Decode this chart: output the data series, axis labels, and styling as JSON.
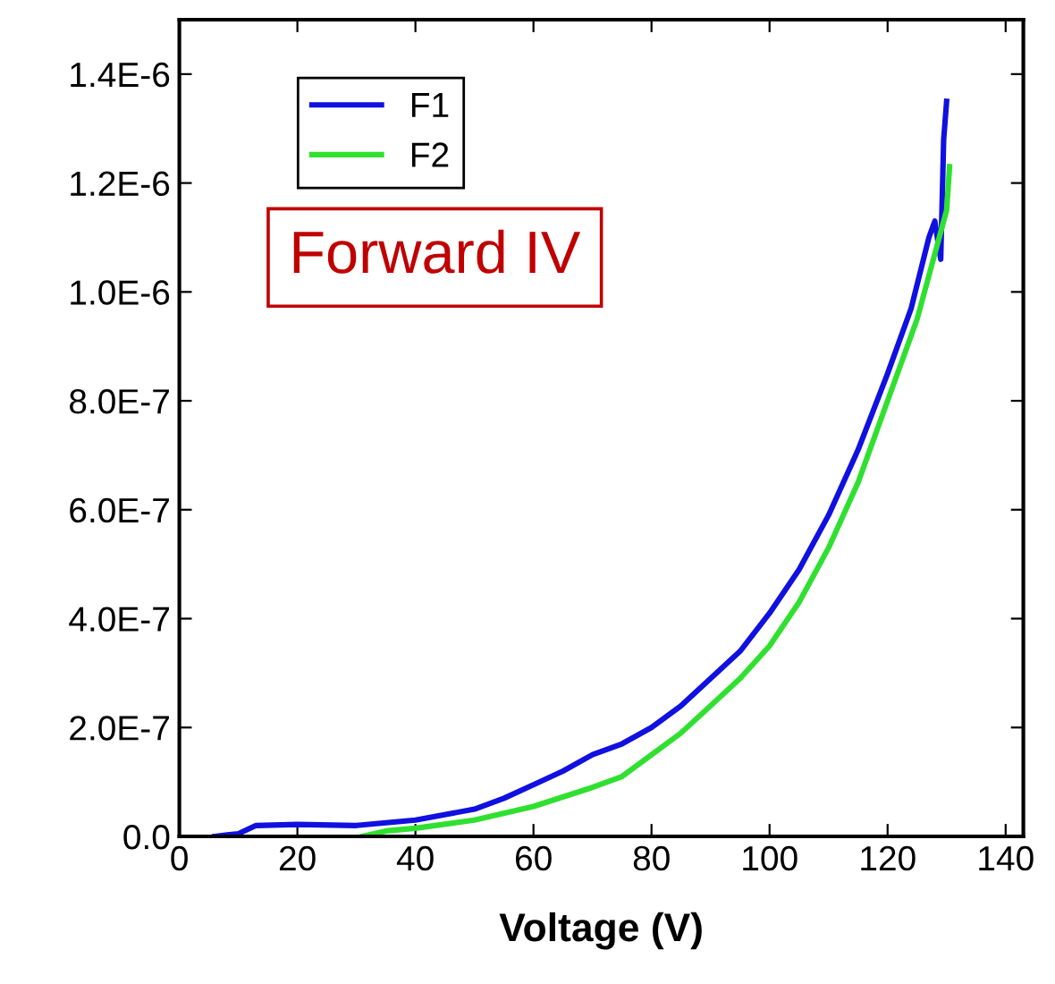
{
  "chart_data": {
    "type": "line",
    "xlabel": "Voltage (V)",
    "annotations": [
      "Forward IV"
    ],
    "series": [
      {
        "name": "F1",
        "color": "#1010e0",
        "x": [
          6,
          10,
          13,
          20,
          30,
          40,
          50,
          55,
          60,
          65,
          70,
          75,
          80,
          85,
          90,
          95,
          100,
          105,
          110,
          115,
          120,
          124,
          127,
          128,
          129,
          129.5,
          130
        ],
        "values": [
          0,
          5e-09,
          2e-08,
          2.2e-08,
          2e-08,
          3e-08,
          5e-08,
          7e-08,
          9.5e-08,
          1.2e-07,
          1.5e-07,
          1.7e-07,
          2e-07,
          2.4e-07,
          2.9e-07,
          3.4e-07,
          4.1e-07,
          4.9e-07,
          5.9e-07,
          7.1e-07,
          8.5e-07,
          9.7e-07,
          1.1e-06,
          1.13e-06,
          1.06e-06,
          1.28e-06,
          1.35e-06
        ]
      },
      {
        "name": "F2",
        "color": "#30e030",
        "x": [
          31,
          35,
          40,
          50,
          60,
          70,
          75,
          80,
          85,
          90,
          95,
          100,
          105,
          110,
          115,
          120,
          125,
          128,
          130,
          130.5
        ],
        "values": [
          0,
          1e-08,
          1.5e-08,
          3e-08,
          5.5e-08,
          9e-08,
          1.1e-07,
          1.5e-07,
          1.9e-07,
          2.4e-07,
          2.9e-07,
          3.5e-07,
          4.3e-07,
          5.3e-07,
          6.5e-07,
          8e-07,
          9.5e-07,
          1.07e-06,
          1.15e-06,
          1.23e-06
        ]
      }
    ],
    "xlim": [
      0,
      143
    ],
    "xticks": [
      0,
      20,
      40,
      60,
      80,
      100,
      120,
      140
    ],
    "ylim": [
      0,
      1.5e-06
    ],
    "yticks": [
      {
        "value": 0,
        "label": "0.0"
      },
      {
        "value": 2e-07,
        "label": "2.0E-7"
      },
      {
        "value": 4e-07,
        "label": "4.0E-7"
      },
      {
        "value": 6e-07,
        "label": "6.0E-7"
      },
      {
        "value": 8e-07,
        "label": "8.0E-7"
      },
      {
        "value": 1e-06,
        "label": "1.0E-6"
      },
      {
        "value": 1.2e-06,
        "label": "1.2E-6"
      },
      {
        "value": 1.4e-06,
        "label": "1.4E-6"
      }
    ],
    "legend": "top left",
    "grid": false,
    "line_style": "solid",
    "marker": "none"
  }
}
